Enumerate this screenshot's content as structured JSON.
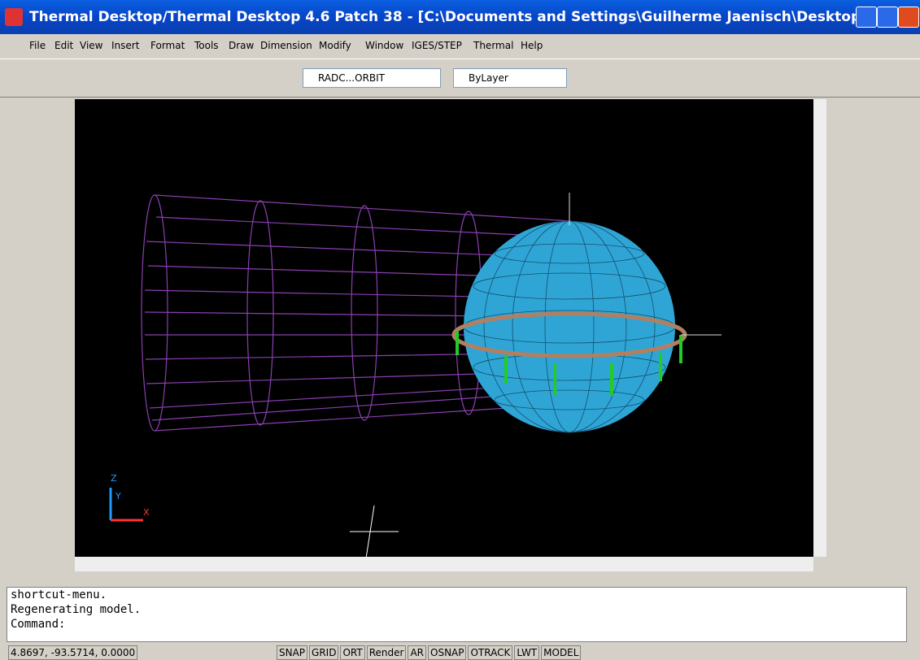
{
  "window": {
    "title": "Thermal Desktop/Thermal Desktop 4.6 Patch 38 - [C:\\Documents and Settings\\Guilherme Jaenisch\\Desktop\\fra..."
  },
  "menu": [
    "File",
    "Edit",
    "View",
    "Insert",
    "Format",
    "Tools",
    "Draw",
    "Dimension",
    "Modify",
    "Window",
    "IGES/STEP",
    "Thermal",
    "Help"
  ],
  "toolbar": {
    "view_combo": "RADC...ORBIT",
    "layer_combo": "ByLayer"
  },
  "viewport": {
    "axis_labels": [
      "Z",
      "Y",
      "X"
    ]
  },
  "command": {
    "lines": [
      "shortcut-menu.",
      "Regenerating model.",
      "Command:"
    ]
  },
  "status": {
    "coordinates": "4.8697, -93.5714, 0.0000",
    "buttons": [
      "SNAP",
      "GRID",
      "ORT",
      "Render",
      "AR",
      "OSNAP",
      "OTRACK",
      "LWT",
      "MODEL"
    ]
  }
}
